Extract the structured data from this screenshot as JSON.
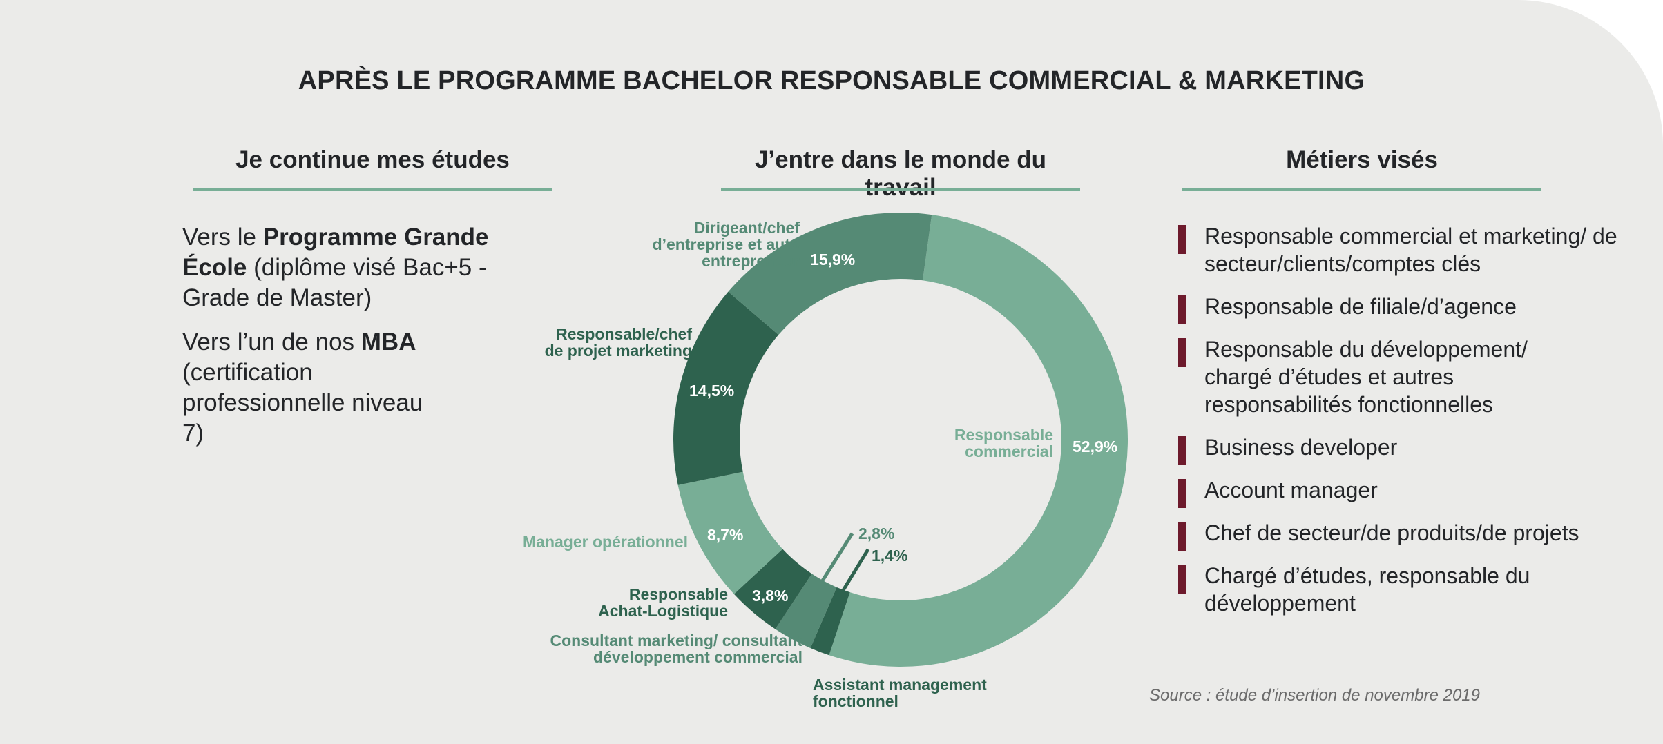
{
  "header": {
    "title": "APRÈS LE PROGRAMME BACHELOR RESPONSABLE COMMERCIAL & MARKETING"
  },
  "columns": {
    "studies": {
      "title": "Je continue mes études",
      "paragraphs": [
        {
          "prefix": "Vers le ",
          "bold": "Programme Grande École",
          "suffix": " (diplôme visé Bac+5 - Grade de Master)"
        },
        {
          "prefix": "Vers l’un de nos ",
          "bold": "MBA",
          "suffix": " (certification professionnelle niveau 7)"
        }
      ]
    },
    "work": {
      "title": "J’entre dans le monde du travail"
    },
    "jobs": {
      "title": "Métiers visés",
      "items": [
        "Responsable commercial et marketing/ de secteur/clients/comptes clés",
        "Responsable de filiale/d’agence",
        "Responsable du développement/ chargé d’études et autres responsabilités fonctionnelles",
        "Business developer",
        "Account manager",
        "Chef de secteur/de produits/de projets",
        "Chargé d’études, responsable du développement"
      ]
    }
  },
  "source": "Source : étude d’insertion de novembre 2019",
  "colors": {
    "background": "#EBEBE9",
    "green_light": "#78AE96",
    "green_medium": "#558A75",
    "green_dark": "#2E624E",
    "accent_bar": "#6D1A2C",
    "text": "#232528"
  },
  "chart_data": {
    "type": "pie",
    "subtype": "donut",
    "title": "J’entre dans le monde du travail",
    "start_angle_deg": 7.9,
    "direction": "clockwise",
    "categories": [
      "Responsable commercial",
      "Assistant management fonctionnel",
      "Consultant marketing/ consultant développement commercial",
      "Responsable Achat-Logistique",
      "Manager opérationnel",
      "Responsable/chef de projet marketing",
      "Dirigeant/chef d’entreprise et auto entrepreneur"
    ],
    "values": [
      52.9,
      1.4,
      2.8,
      3.8,
      8.7,
      14.5,
      15.9
    ],
    "value_labels": [
      "52,9%",
      "1,4%",
      "2,8%",
      "3,8%",
      "8,7%",
      "14,5%",
      "15,9%"
    ],
    "colors": [
      "#78AE96",
      "#2E624E",
      "#558A75",
      "#2E624E",
      "#78AE96",
      "#2E624E",
      "#558A75"
    ],
    "unit": "%"
  }
}
